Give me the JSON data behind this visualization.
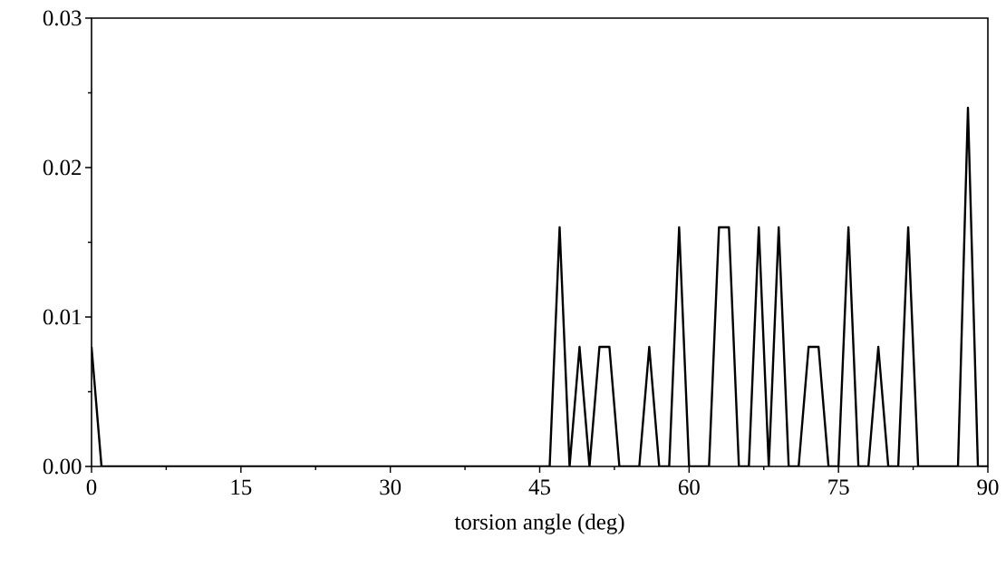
{
  "chart_data": {
    "type": "line",
    "xlabel": "torsion angle (deg)",
    "x": [
      0,
      1,
      2,
      3,
      4,
      5,
      6,
      7,
      8,
      9,
      10,
      11,
      12,
      13,
      14,
      15,
      16,
      17,
      18,
      19,
      20,
      21,
      22,
      23,
      24,
      25,
      26,
      27,
      28,
      29,
      30,
      31,
      32,
      33,
      34,
      35,
      36,
      37,
      38,
      39,
      40,
      41,
      42,
      43,
      44,
      45,
      46,
      47,
      48,
      49,
      50,
      51,
      52,
      53,
      54,
      55,
      56,
      57,
      58,
      59,
      60,
      61,
      62,
      63,
      64,
      65,
      66,
      67,
      68,
      69,
      70,
      71,
      72,
      73,
      74,
      75,
      76,
      77,
      78,
      79,
      80,
      81,
      82,
      83,
      84,
      85,
      86,
      87,
      88,
      89,
      90
    ],
    "series": [
      {
        "color": "#000000",
        "values": [
          0.008,
          0,
          0,
          0,
          0,
          0,
          0,
          0,
          0,
          0,
          0,
          0,
          0,
          0,
          0,
          0,
          0,
          0,
          0,
          0,
          0,
          0,
          0,
          0,
          0,
          0,
          0,
          0,
          0,
          0,
          0,
          0,
          0,
          0,
          0,
          0,
          0,
          0,
          0,
          0,
          0,
          0,
          0,
          0,
          0,
          0,
          0,
          0.016,
          0,
          0.008,
          0,
          0.008,
          0.008,
          0,
          0,
          0,
          0.008,
          0,
          0,
          0.016,
          0,
          0,
          0,
          0.016,
          0.016,
          0,
          0,
          0.016,
          0,
          0.016,
          0,
          0,
          0.008,
          0.008,
          0,
          0,
          0.016,
          0,
          0,
          0.008,
          0,
          0,
          0.016,
          0,
          0,
          0,
          0,
          0,
          0.024,
          0,
          0
        ]
      }
    ],
    "xlim": [
      0,
      90
    ],
    "ylim": [
      0,
      0.03
    ],
    "xticks": [
      0,
      15,
      30,
      45,
      60,
      75,
      90
    ],
    "yticks": [
      {
        "value": 0,
        "label": "0.00"
      },
      0.01,
      0.02,
      0.03
    ],
    "grid": false,
    "marker": "none",
    "line_style": "solid"
  }
}
